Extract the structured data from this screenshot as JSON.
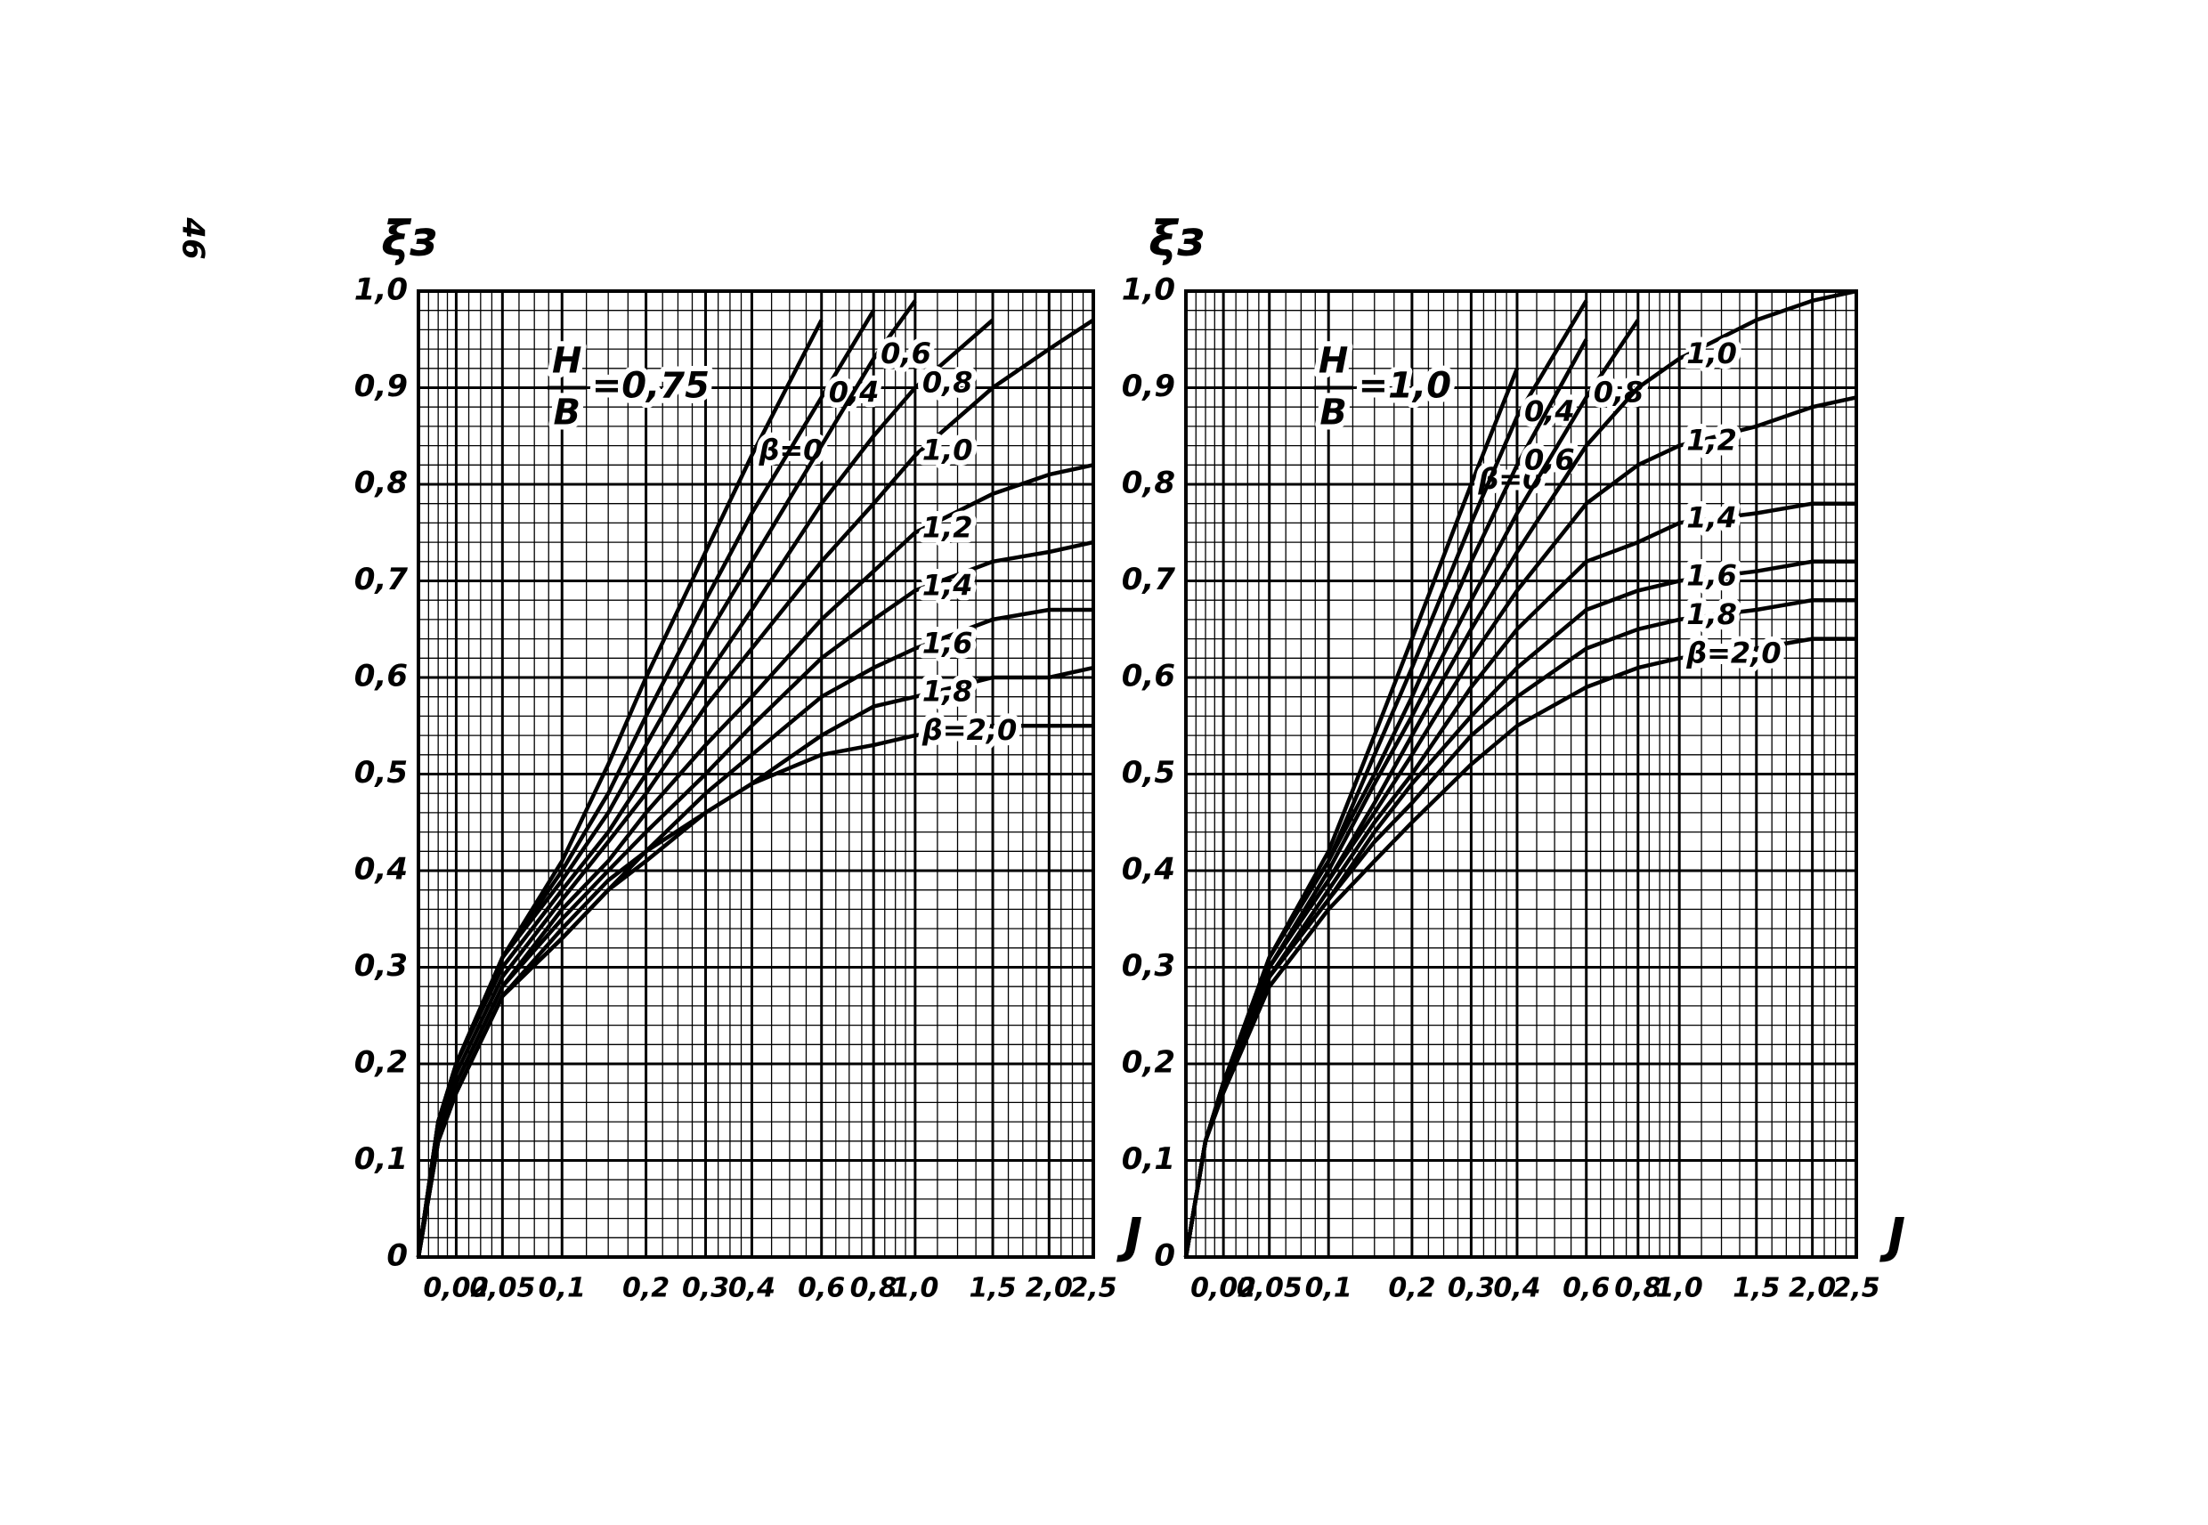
{
  "page_number": "46",
  "chart_data": [
    {
      "type": "line",
      "y_label": "ξз",
      "x_label": "J",
      "annotation": {
        "numerator": "H",
        "denominator": "B",
        "text": "=0,75"
      },
      "x": [
        0,
        0.01,
        0.02,
        0.05,
        0.1,
        0.15,
        0.2,
        0.3,
        0.4,
        0.6,
        0.8,
        1.0,
        1.5,
        2.0,
        2.5
      ],
      "xlim": [
        0,
        2.5
      ],
      "xticks": [
        {
          "value": 0.02,
          "label": "0,02"
        },
        {
          "value": 0.05,
          "label": "0,05"
        },
        {
          "value": 0.1,
          "label": "0,1"
        },
        {
          "value": 0.2,
          "label": "0,2"
        },
        {
          "value": 0.3,
          "label": "0,3"
        },
        {
          "value": 0.4,
          "label": "0,4"
        },
        {
          "value": 0.6,
          "label": "0,6"
        },
        {
          "value": 0.8,
          "label": "0,8"
        },
        {
          "value": 1.0,
          "label": "1,0"
        },
        {
          "value": 1.5,
          "label": "1,5"
        },
        {
          "value": 2.0,
          "label": "2,0"
        },
        {
          "value": 2.5,
          "label": "2,5"
        }
      ],
      "ylim": [
        0,
        1
      ],
      "yticks": [
        0,
        {
          "value": 0.1,
          "label": "0,1"
        },
        {
          "value": 0.2,
          "label": "0,2"
        },
        {
          "value": 0.3,
          "label": "0,3"
        },
        {
          "value": 0.4,
          "label": "0,4"
        },
        {
          "value": 0.5,
          "label": "0,5"
        },
        {
          "value": 0.6,
          "label": "0,6"
        },
        {
          "value": 0.7,
          "label": "0,7"
        },
        {
          "value": 0.8,
          "label": "0,8"
        },
        {
          "value": 0.9,
          "label": "0,9"
        },
        {
          "value": 1.0,
          "label": "1,0"
        }
      ],
      "grid": true,
      "series": [
        {
          "name": "β=0",
          "color": "#000000",
          "values": [
            0,
            0.14,
            0.2,
            0.31,
            0.41,
            0.51,
            0.6,
            0.73,
            0.83,
            0.97,
            null,
            null,
            null,
            null,
            null
          ]
        },
        {
          "name": "0,4",
          "color": "#000000",
          "values": [
            0,
            0.14,
            0.2,
            0.31,
            0.4,
            0.48,
            0.56,
            0.68,
            0.77,
            0.89,
            0.98,
            null,
            null,
            null,
            null
          ]
        },
        {
          "name": "0,6",
          "color": "#000000",
          "values": [
            0,
            0.14,
            0.2,
            0.31,
            0.39,
            0.46,
            0.53,
            0.64,
            0.72,
            0.84,
            0.93,
            0.99,
            null,
            null,
            null
          ]
        },
        {
          "name": "0,8",
          "color": "#000000",
          "values": [
            0,
            0.14,
            0.2,
            0.3,
            0.38,
            0.44,
            0.5,
            0.6,
            0.67,
            0.78,
            0.85,
            0.9,
            0.97,
            null,
            null
          ]
        },
        {
          "name": "1,0",
          "color": "#000000",
          "values": [
            0,
            0.13,
            0.19,
            0.29,
            0.37,
            0.43,
            0.48,
            0.57,
            0.63,
            0.72,
            0.78,
            0.83,
            0.9,
            0.94,
            0.97
          ]
        },
        {
          "name": "1,2",
          "color": "#000000",
          "values": [
            0,
            0.13,
            0.18,
            0.28,
            0.36,
            0.41,
            0.46,
            0.53,
            0.58,
            0.66,
            0.71,
            0.75,
            0.79,
            0.81,
            0.82
          ]
        },
        {
          "name": "1,4",
          "color": "#000000",
          "values": [
            0,
            0.12,
            0.18,
            0.28,
            0.35,
            0.4,
            0.44,
            0.5,
            0.55,
            0.62,
            0.66,
            0.69,
            0.72,
            0.73,
            0.74
          ]
        },
        {
          "name": "1,6",
          "color": "#000000",
          "values": [
            0,
            0.12,
            0.17,
            0.27,
            0.34,
            0.39,
            0.42,
            0.48,
            0.52,
            0.58,
            0.61,
            0.63,
            0.66,
            0.67,
            0.67
          ]
        },
        {
          "name": "1,8",
          "color": "#000000",
          "values": [
            0,
            0.12,
            0.17,
            0.27,
            0.33,
            0.38,
            0.41,
            0.46,
            0.49,
            0.54,
            0.57,
            0.58,
            0.6,
            0.6,
            0.61
          ]
        },
        {
          "name": "β=2,0",
          "color": "#000000",
          "values": [
            0,
            0.12,
            0.17,
            0.27,
            0.33,
            0.38,
            0.42,
            0.46,
            0.49,
            0.52,
            0.53,
            0.54,
            0.55,
            0.55,
            0.55
          ]
        }
      ]
    },
    {
      "type": "line",
      "y_label": "ξз",
      "x_label": "J",
      "annotation": {
        "numerator": "H",
        "denominator": "B",
        "text": "=1,0"
      },
      "x": [
        0,
        0.01,
        0.02,
        0.05,
        0.1,
        0.15,
        0.2,
        0.3,
        0.4,
        0.6,
        0.8,
        1.0,
        1.5,
        2.0,
        2.5
      ],
      "xlim": [
        0,
        2.5
      ],
      "xticks": [
        {
          "value": 0.02,
          "label": "0,02"
        },
        {
          "value": 0.05,
          "label": "0,05"
        },
        {
          "value": 0.1,
          "label": "0,1"
        },
        {
          "value": 0.2,
          "label": "0,2"
        },
        {
          "value": 0.3,
          "label": "0,3"
        },
        {
          "value": 0.4,
          "label": "0,4"
        },
        {
          "value": 0.6,
          "label": "0,6"
        },
        {
          "value": 0.8,
          "label": "0,8"
        },
        {
          "value": 1.0,
          "label": "1,0"
        },
        {
          "value": 1.5,
          "label": "1,5"
        },
        {
          "value": 2.0,
          "label": "2,0"
        },
        {
          "value": 2.5,
          "label": "2,5"
        }
      ],
      "ylim": [
        0,
        1
      ],
      "yticks": [
        0,
        {
          "value": 0.1,
          "label": "0,1"
        },
        {
          "value": 0.2,
          "label": "0,2"
        },
        {
          "value": 0.3,
          "label": "0,3"
        },
        {
          "value": 0.4,
          "label": "0,4"
        },
        {
          "value": 0.5,
          "label": "0,5"
        },
        {
          "value": 0.6,
          "label": "0,6"
        },
        {
          "value": 0.7,
          "label": "0,7"
        },
        {
          "value": 0.8,
          "label": "0,8"
        },
        {
          "value": 0.9,
          "label": "0,9"
        },
        {
          "value": 1.0,
          "label": "1,0"
        }
      ],
      "grid": true,
      "series": [
        {
          "name": "β=0",
          "color": "#000000",
          "values": [
            0,
            0.12,
            0.18,
            0.31,
            0.42,
            0.54,
            0.64,
            0.8,
            0.92,
            null,
            null,
            null,
            null,
            null,
            null
          ]
        },
        {
          "name": "0,4",
          "color": "#000000",
          "values": [
            0,
            0.12,
            0.18,
            0.31,
            0.41,
            0.52,
            0.61,
            0.76,
            0.87,
            0.99,
            null,
            null,
            null,
            null,
            null
          ]
        },
        {
          "name": "0,6",
          "color": "#000000",
          "values": [
            0,
            0.12,
            0.18,
            0.31,
            0.41,
            0.5,
            0.58,
            0.72,
            0.82,
            0.95,
            null,
            null,
            null,
            null,
            null
          ]
        },
        {
          "name": "0,8",
          "color": "#000000",
          "values": [
            0,
            0.12,
            0.18,
            0.3,
            0.4,
            0.49,
            0.56,
            0.68,
            0.77,
            0.89,
            0.97,
            null,
            null,
            null,
            null
          ]
        },
        {
          "name": "1,0",
          "color": "#000000",
          "values": [
            0,
            0.12,
            0.18,
            0.3,
            0.39,
            0.47,
            0.54,
            0.65,
            0.73,
            0.84,
            0.9,
            0.93,
            0.97,
            0.99,
            1.0
          ]
        },
        {
          "name": "1,2",
          "color": "#000000",
          "values": [
            0,
            0.12,
            0.18,
            0.3,
            0.39,
            0.46,
            0.52,
            0.62,
            0.69,
            0.78,
            0.82,
            0.84,
            0.86,
            0.88,
            0.89
          ]
        },
        {
          "name": "1,4",
          "color": "#000000",
          "values": [
            0,
            0.12,
            0.18,
            0.29,
            0.38,
            0.45,
            0.5,
            0.59,
            0.65,
            0.72,
            0.74,
            0.76,
            0.77,
            0.78,
            0.78
          ]
        },
        {
          "name": "1,6",
          "color": "#000000",
          "values": [
            0,
            0.12,
            0.18,
            0.29,
            0.37,
            0.44,
            0.49,
            0.56,
            0.61,
            0.67,
            0.69,
            0.7,
            0.71,
            0.72,
            0.72
          ]
        },
        {
          "name": "1,8",
          "color": "#000000",
          "values": [
            0,
            0.12,
            0.18,
            0.29,
            0.37,
            0.43,
            0.47,
            0.54,
            0.58,
            0.63,
            0.65,
            0.66,
            0.67,
            0.68,
            0.68
          ]
        },
        {
          "name": "β=2,0",
          "color": "#000000",
          "values": [
            0,
            0.12,
            0.17,
            0.28,
            0.36,
            0.41,
            0.45,
            0.51,
            0.55,
            0.59,
            0.61,
            0.62,
            0.63,
            0.64,
            0.64
          ]
        }
      ]
    }
  ]
}
